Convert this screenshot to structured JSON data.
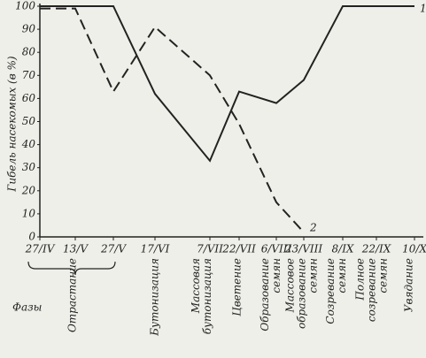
{
  "chart_data": {
    "type": "line",
    "ylabel": "Гибель насекомых (в %)",
    "categories": [
      "27/IV",
      "13/V",
      "27/V",
      "17/VI",
      "7/VII",
      "22/VII",
      "6/VIII",
      "23/VIII",
      "8/IX",
      "22/IX",
      "10/X"
    ],
    "series": [
      {
        "name": "1",
        "color": "#222222",
        "dash": false,
        "values": [
          100,
          100,
          100,
          62,
          33,
          63,
          58,
          68,
          100,
          100,
          100
        ]
      },
      {
        "name": "2",
        "color": "#222222",
        "dash": true,
        "values": [
          99,
          99,
          63,
          91,
          70,
          49,
          15,
          2,
          null,
          null,
          null
        ]
      }
    ],
    "ylim": [
      0,
      100
    ],
    "yticks": [
      0,
      10,
      20,
      30,
      40,
      50,
      60,
      70,
      80,
      90,
      100
    ],
    "grid": false,
    "phases_title": "Фазы",
    "phases": [
      [
        "Отрастание"
      ],
      [
        "Бутонизация"
      ],
      [
        "Массовая",
        "бутонизация"
      ],
      [
        "Цветение"
      ],
      [
        "Образование",
        "семян"
      ],
      [
        "Массовое",
        "образование",
        "семян"
      ],
      [
        "Созревание",
        "семян"
      ],
      [
        "Полное",
        "созревание",
        "семян"
      ],
      [
        "Увядание"
      ]
    ]
  }
}
